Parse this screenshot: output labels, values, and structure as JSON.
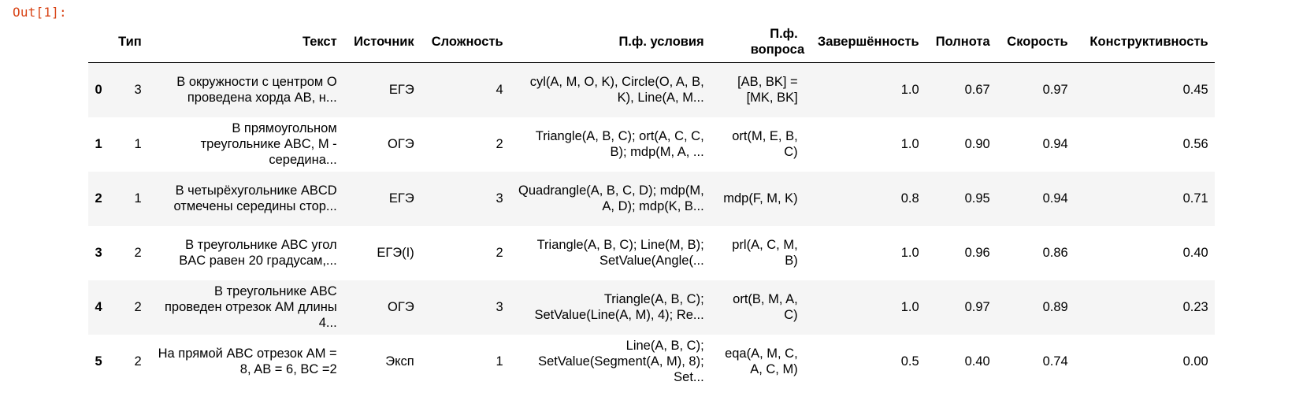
{
  "cell": {
    "prompt": "Out[1]:"
  },
  "table": {
    "columns": [
      {
        "key": "index",
        "label": ""
      },
      {
        "key": "type",
        "label": "Тип"
      },
      {
        "key": "text",
        "label": "Текст"
      },
      {
        "key": "source",
        "label": "Источник"
      },
      {
        "key": "difficulty",
        "label": "Сложность"
      },
      {
        "key": "cond_formal",
        "label": "П.ф. условия"
      },
      {
        "key": "question_formal",
        "label": "П.ф. вопроса"
      },
      {
        "key": "completeness",
        "label": "Завершённость"
      },
      {
        "key": "fullness",
        "label": "Полнота"
      },
      {
        "key": "speed",
        "label": "Скорость"
      },
      {
        "key": "constructiveness",
        "label": "Конструктивность"
      }
    ],
    "rows": [
      {
        "index": "0",
        "type": "3",
        "text": "В окружности с центром O проведена хорда AB, н...",
        "source": "ЕГЭ",
        "difficulty": "4",
        "cond_formal": "cyl(A, M, O, K), Circle(O, A, B, K), Line(A, M...",
        "question_formal": "[AB, BK] = [MK, BK]",
        "completeness": "1.0",
        "fullness": "0.67",
        "speed": "0.97",
        "constructiveness": "0.45"
      },
      {
        "index": "1",
        "type": "1",
        "text": "В прямоугольном треугольнике ABC, M - середина...",
        "source": "ОГЭ",
        "difficulty": "2",
        "cond_formal": "Triangle(A, B, C); ort(A, C, C, B); mdp(M, A, ...",
        "question_formal": "ort(M, E, B, C)",
        "completeness": "1.0",
        "fullness": "0.90",
        "speed": "0.94",
        "constructiveness": "0.56"
      },
      {
        "index": "2",
        "type": "1",
        "text": "В четырёхугольнике ABCD отмечены середины стор...",
        "source": "ЕГЭ",
        "difficulty": "3",
        "cond_formal": "Quadrangle(A, B, C, D); mdp(M, A, D); mdp(K, B...",
        "question_formal": "mdp(F, M, K)",
        "completeness": "0.8",
        "fullness": "0.95",
        "speed": "0.94",
        "constructiveness": "0.71"
      },
      {
        "index": "3",
        "type": "2",
        "text": "В треугольнике ABC угол BAC равен 20 градусам,...",
        "source": "ЕГЭ(I)",
        "difficulty": "2",
        "cond_formal": "Triangle(A, B, C); Line(M, B); SetValue(Angle(...",
        "question_formal": "prl(A, C, M, B)",
        "completeness": "1.0",
        "fullness": "0.96",
        "speed": "0.86",
        "constructiveness": "0.40"
      },
      {
        "index": "4",
        "type": "2",
        "text": "В треугольнике ABC проведен отрезок AM длины 4...",
        "source": "ОГЭ",
        "difficulty": "3",
        "cond_formal": "Triangle(A, B, C); SetValue(Line(A, M), 4); Re...",
        "question_formal": "ort(B, M, A, C)",
        "completeness": "1.0",
        "fullness": "0.97",
        "speed": "0.89",
        "constructiveness": "0.23"
      },
      {
        "index": "5",
        "type": "2",
        "text": "На прямой ABC отрезок AM = 8, AB = 6, BC =2",
        "source": "Эксп",
        "difficulty": "1",
        "cond_formal": "Line(A, B, C); SetValue(Segment(A, M), 8); Set...",
        "question_formal": "eqa(A, M, C, A, C, M)",
        "completeness": "0.5",
        "fullness": "0.40",
        "speed": "0.74",
        "constructiveness": "0.00"
      }
    ]
  }
}
